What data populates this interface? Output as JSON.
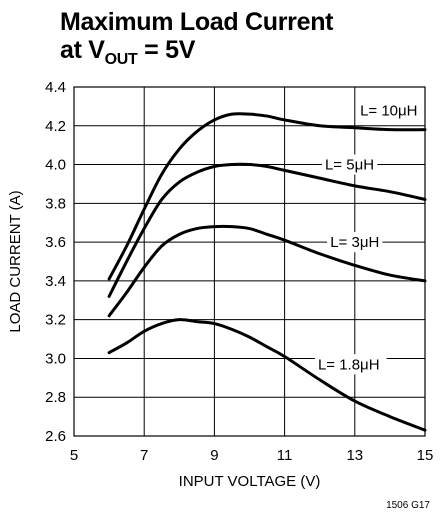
{
  "title": {
    "line1": "Maximum Load Current",
    "line2_prefix": "at V",
    "line2_sub": "OUT",
    "line2_suffix": " = 5V"
  },
  "figure_id": "1506 G17",
  "chart_data": {
    "type": "line",
    "title": "Maximum Load Current at VOUT = 5V",
    "xlabel": "INPUT VOLTAGE (V)",
    "ylabel": "LOAD CURRENT (A)",
    "xlim": [
      5,
      15
    ],
    "ylim": [
      2.6,
      4.4
    ],
    "xticks": [
      5,
      7,
      9,
      11,
      13,
      15
    ],
    "yticks": [
      2.6,
      2.8,
      3.0,
      3.2,
      3.4,
      3.6,
      3.8,
      4.0,
      4.2,
      4.4
    ],
    "ytick_labels": [
      "2.6",
      "2.8",
      "3.0",
      "3.2",
      "3.4",
      "3.6",
      "3.8",
      "4.0",
      "4.2",
      "4.4"
    ],
    "grid": true,
    "series": [
      {
        "name": "L= 10μH",
        "x": [
          6,
          6.5,
          7,
          7.5,
          8,
          8.5,
          9,
          9.5,
          10,
          10.5,
          11,
          12,
          13,
          14,
          15
        ],
        "y": [
          3.41,
          3.58,
          3.77,
          3.95,
          4.08,
          4.17,
          4.23,
          4.26,
          4.26,
          4.25,
          4.23,
          4.2,
          4.19,
          4.18,
          4.18
        ]
      },
      {
        "name": "L= 5μH",
        "x": [
          6,
          6.5,
          7,
          7.5,
          8,
          8.5,
          9,
          9.5,
          10,
          10.5,
          11,
          12,
          13,
          14,
          15
        ],
        "y": [
          3.32,
          3.5,
          3.67,
          3.82,
          3.91,
          3.96,
          3.99,
          4.0,
          4.0,
          3.99,
          3.97,
          3.93,
          3.89,
          3.86,
          3.82
        ]
      },
      {
        "name": "L= 3μH",
        "x": [
          6,
          6.5,
          7,
          7.5,
          8,
          8.5,
          9,
          9.5,
          10,
          10.5,
          11,
          12,
          13,
          14,
          15
        ],
        "y": [
          3.22,
          3.34,
          3.47,
          3.58,
          3.64,
          3.67,
          3.68,
          3.68,
          3.67,
          3.64,
          3.61,
          3.54,
          3.48,
          3.43,
          3.4
        ]
      },
      {
        "name": "L= 1.8μH",
        "x": [
          6,
          6.5,
          7,
          7.5,
          8,
          8.5,
          9,
          9.5,
          10,
          10.5,
          11,
          12,
          13,
          14,
          15
        ],
        "y": [
          3.03,
          3.08,
          3.14,
          3.18,
          3.2,
          3.19,
          3.18,
          3.15,
          3.11,
          3.06,
          3.01,
          2.89,
          2.78,
          2.7,
          2.63
        ]
      }
    ],
    "labels": [
      {
        "text": "L= 10μH",
        "x": 13.15,
        "y": 4.28
      },
      {
        "text": "L= 5μH",
        "x": 12.15,
        "y": 4.0
      },
      {
        "text": "L= 3μH",
        "x": 12.3,
        "y": 3.6
      },
      {
        "text": "L= 1.8μH",
        "x": 11.95,
        "y": 2.97
      }
    ]
  }
}
